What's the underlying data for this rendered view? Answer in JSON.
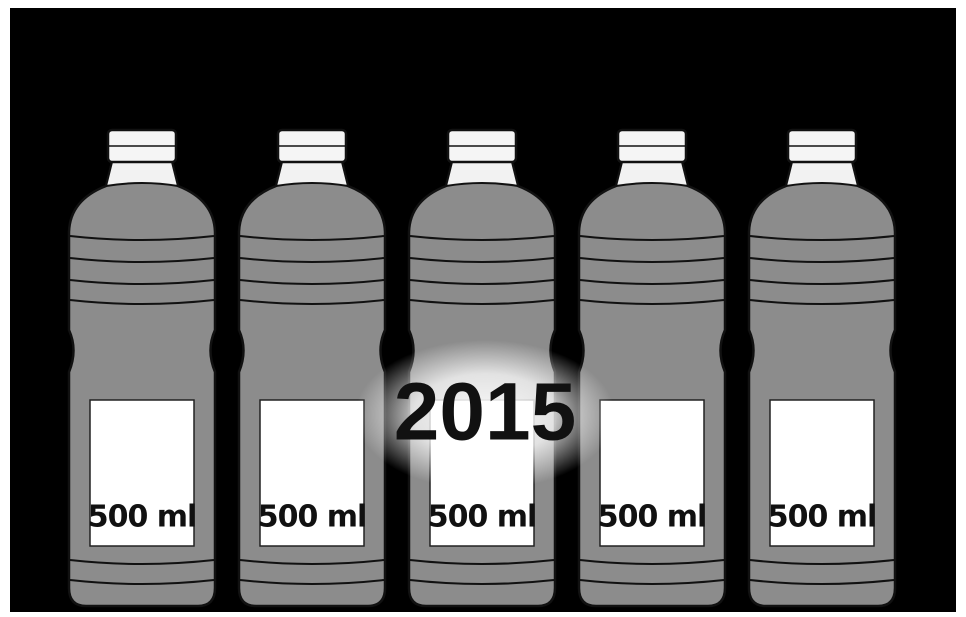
{
  "year": "2015",
  "bottles": [
    {
      "label": "500 ml"
    },
    {
      "label": "500 ml"
    },
    {
      "label": "500 ml"
    },
    {
      "label": "500 ml"
    },
    {
      "label": "500 ml"
    }
  ]
}
